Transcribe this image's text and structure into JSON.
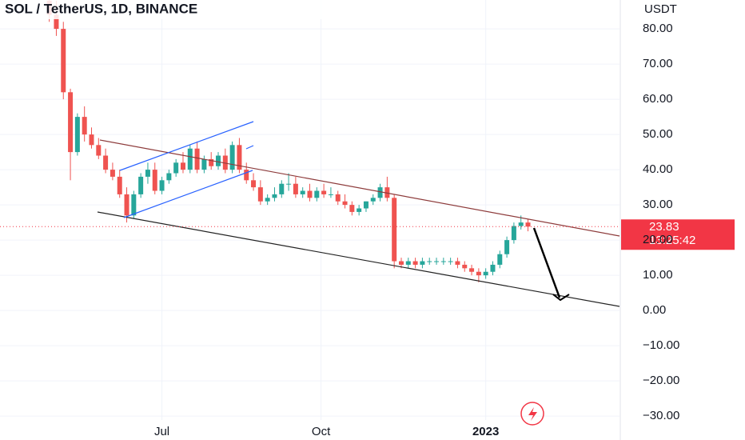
{
  "chart_data": {
    "type": "candlestick",
    "title": "SOL / TetherUS, 1D, BINANCE",
    "y_axis_label": "USDT",
    "open": [
      88,
      84,
      80,
      62,
      45,
      55,
      50,
      47,
      44,
      40,
      38,
      33,
      27,
      33,
      38,
      40,
      34,
      37,
      39,
      42,
      40,
      46,
      40,
      43,
      41,
      44,
      40,
      47,
      40,
      37,
      35,
      31,
      32,
      33,
      36,
      36,
      33,
      34,
      32,
      34,
      33,
      33,
      31,
      30,
      28,
      29,
      31,
      32,
      35,
      32,
      14,
      13,
      14,
      13,
      14,
      14,
      14,
      14,
      14,
      13,
      12,
      11,
      10,
      11,
      13,
      16,
      20,
      24,
      25
    ],
    "high": [
      92,
      88,
      82,
      63,
      56,
      58,
      52,
      49,
      46,
      42,
      40,
      35,
      34,
      39,
      42,
      42,
      38,
      40,
      43,
      45,
      47,
      48,
      44,
      45,
      45,
      46,
      48,
      49,
      42,
      39,
      37,
      33,
      35,
      37,
      39,
      38,
      35,
      36,
      35,
      36,
      35,
      34,
      33,
      31,
      30,
      31,
      33,
      36,
      38,
      33,
      15,
      15,
      15,
      15,
      15,
      15,
      15,
      15,
      15,
      14,
      13,
      12,
      12,
      14,
      17,
      21,
      25,
      27,
      26
    ],
    "low": [
      82,
      78,
      60,
      37,
      44,
      48,
      46,
      43,
      39,
      37,
      32,
      25,
      26,
      32,
      36,
      33,
      33,
      36,
      38,
      39,
      39,
      39,
      39,
      40,
      40,
      39,
      39,
      39,
      36,
      34,
      30,
      30,
      31,
      32,
      34,
      32,
      32,
      31,
      31,
      32,
      32,
      30,
      29,
      27,
      27,
      28,
      30,
      31,
      31,
      12,
      12,
      12,
      12,
      12,
      13,
      13,
      13,
      13,
      12,
      11,
      10,
      8,
      9,
      10,
      12,
      15,
      19,
      23,
      22.5
    ],
    "close": [
      84,
      80,
      62,
      45,
      55,
      50,
      47,
      44,
      40,
      38,
      33,
      27,
      33,
      38,
      40,
      34,
      37,
      39,
      42,
      40,
      46,
      40,
      43,
      41,
      44,
      40,
      47,
      40,
      37,
      35,
      31,
      32,
      33,
      36,
      36,
      33,
      34,
      32,
      34,
      33,
      33,
      31,
      30,
      28,
      29,
      31,
      32,
      35,
      32,
      14,
      13,
      14,
      13,
      14,
      14,
      14,
      14,
      14,
      13,
      12,
      11,
      10,
      11,
      13,
      16,
      20,
      24,
      25,
      23.83
    ],
    "up_color": "#26a69a",
    "down_color": "#ef5350",
    "xlim": [
      -7,
      81
    ],
    "xticks": [
      {
        "value": 16,
        "label": "Jul"
      },
      {
        "value": 38.6,
        "label": "Oct"
      },
      {
        "value": 62,
        "label": "2023"
      }
    ],
    "ylim": [
      -31.1,
      88.2
    ],
    "yticks": [
      {
        "value": -30,
        "label": "−30.00"
      },
      {
        "value": -20,
        "label": "−20.00"
      },
      {
        "value": -10,
        "label": "−10.00"
      },
      {
        "value": 0,
        "label": "0.00"
      },
      {
        "value": 10,
        "label": "10.00"
      },
      {
        "value": 20,
        "label": "20.00"
      },
      {
        "value": 30,
        "label": "30.00"
      },
      {
        "value": 40,
        "label": "40.00"
      },
      {
        "value": 50,
        "label": "50.00"
      },
      {
        "value": 60,
        "label": "60.00"
      },
      {
        "value": 70,
        "label": "70.00"
      },
      {
        "value": 80,
        "label": "80.00"
      }
    ],
    "grid": true,
    "last_price": 23.83,
    "last_price_label": "23.83",
    "countdown": "13:25:42"
  }
}
